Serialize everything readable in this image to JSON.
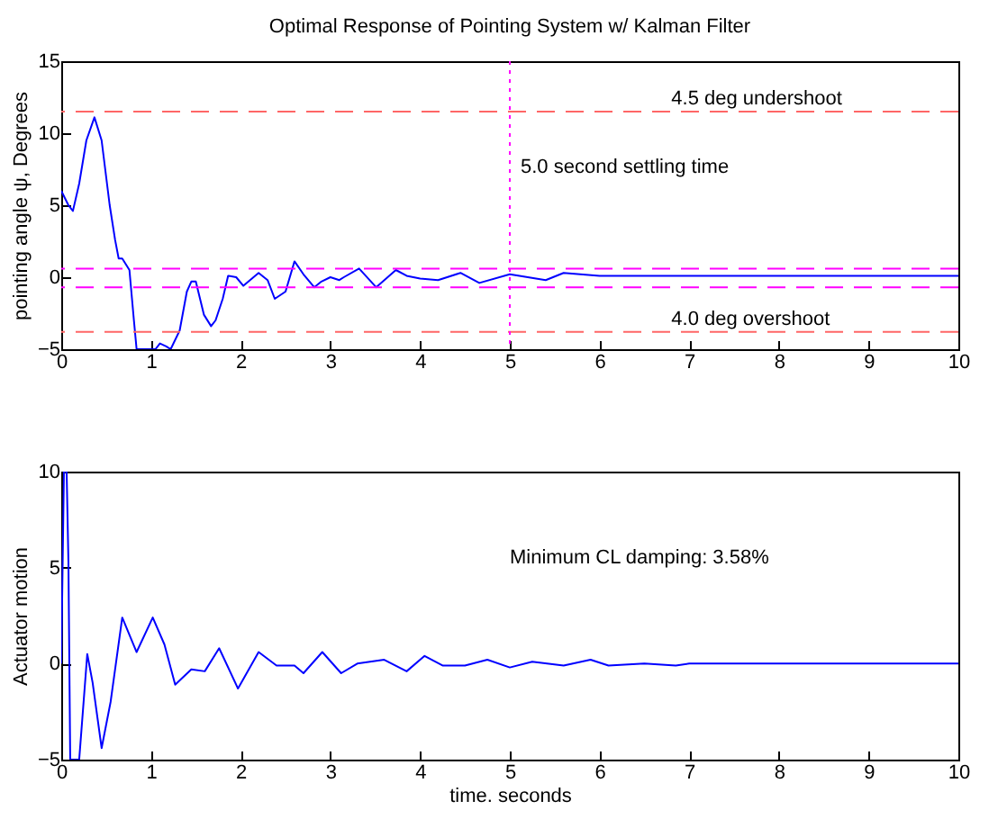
{
  "chart_data": [
    {
      "type": "line",
      "title": "Optimal Response of Pointing System w/ Kalman Filter",
      "ylabel": "pointing angle ψ, Degrees",
      "xlim": [
        0,
        10
      ],
      "xticks": [
        0,
        1,
        2,
        3,
        4,
        5,
        6,
        7,
        8,
        9,
        10
      ],
      "ylim": [
        -5,
        15
      ],
      "yticks": [
        -5,
        0,
        5,
        10,
        15
      ],
      "grid": false,
      "legend": false,
      "series": [
        {
          "color": "#0000ff",
          "line_style": "solid",
          "x": [
            0,
            0.08,
            0.13,
            0.2,
            0.28,
            0.37,
            0.45,
            0.54,
            0.6,
            0.64,
            0.68,
            0.76,
            0.81,
            0.84,
            1.05,
            1.1,
            1.17,
            1.22,
            1.32,
            1.4,
            1.45,
            1.5,
            1.59,
            1.67,
            1.72,
            1.8,
            1.86,
            1.95,
            2.03,
            2.2,
            2.3,
            2.38,
            2.5,
            2.6,
            2.7,
            2.82,
            2.9,
            3.0,
            3.1,
            3.15,
            3.32,
            3.51,
            3.73,
            3.85,
            4.0,
            4.2,
            4.45,
            4.66,
            5.0,
            5.4,
            5.6,
            6.0,
            6.5,
            7.0,
            8.0,
            9.0,
            10.0
          ],
          "values": [
            6.0,
            5.0,
            4.6,
            6.5,
            9.5,
            11.1,
            9.5,
            5.0,
            2.6,
            1.3,
            1.3,
            0.5,
            -3.0,
            -5,
            -5,
            -4.6,
            -4.8,
            -5,
            -3.7,
            -1.0,
            -0.3,
            -0.3,
            -2.6,
            -3.4,
            -3.0,
            -1.5,
            0.1,
            0.0,
            -0.6,
            0.3,
            -0.2,
            -1.5,
            -1.0,
            1.1,
            0.2,
            -0.7,
            -0.3,
            0.0,
            -0.2,
            0.0,
            0.6,
            -0.7,
            0.5,
            0.1,
            -0.1,
            -0.2,
            0.3,
            -0.4,
            0.2,
            -0.2,
            0.3,
            0.1,
            0.1,
            0.1,
            0.1,
            0.1,
            0.1
          ]
        }
      ],
      "ref_lines": [
        {
          "axis": "y",
          "value": 11.5,
          "label": "4.5 deg undershoot",
          "color": "#ff6666",
          "line_style": "dashed"
        },
        {
          "axis": "y",
          "value": 0.6,
          "color": "#ff00ff",
          "line_style": "dashed"
        },
        {
          "axis": "y",
          "value": -0.7,
          "color": "#ff00ff",
          "line_style": "dashed"
        },
        {
          "axis": "y",
          "value": -3.8,
          "label": "4.0 deg overshoot",
          "color": "#ff6666",
          "line_style": "dashed"
        },
        {
          "axis": "x",
          "value": 5,
          "label": "5.0 second settling time",
          "color": "#ff00ff",
          "line_style": "dotted"
        }
      ]
    },
    {
      "type": "line",
      "xlabel": "time. seconds",
      "ylabel": "Actuator motion",
      "xlim": [
        0,
        10
      ],
      "xticks": [
        0,
        1,
        2,
        3,
        4,
        5,
        6,
        7,
        8,
        9,
        10
      ],
      "ylim": [
        -5,
        10
      ],
      "yticks": [
        -5,
        0,
        5,
        10
      ],
      "grid": false,
      "legend": false,
      "annotations": [
        "Minimum CL damping: 3.58%"
      ],
      "series": [
        {
          "color": "#0000ff",
          "line_style": "solid",
          "x": [
            0,
            0.03,
            0.06,
            0.08,
            0.1,
            0.2,
            0.29,
            0.35,
            0.45,
            0.55,
            0.68,
            0.84,
            1.02,
            1.15,
            1.27,
            1.45,
            1.6,
            1.76,
            1.97,
            2.2,
            2.4,
            2.6,
            2.7,
            2.91,
            3.12,
            3.3,
            3.6,
            3.85,
            4.05,
            4.25,
            4.5,
            4.75,
            5.0,
            5.25,
            5.6,
            5.9,
            6.1,
            6.5,
            6.85,
            7.0,
            8.0,
            9.0,
            10.0
          ],
          "values": [
            0,
            10,
            10,
            5.3,
            -5,
            -5,
            0.5,
            -1.0,
            -4.4,
            -2.0,
            2.4,
            0.6,
            2.4,
            1.0,
            -1.1,
            -0.3,
            -0.4,
            0.8,
            -1.3,
            0.6,
            -0.1,
            -0.1,
            -0.5,
            0.6,
            -0.5,
            0.0,
            0.2,
            -0.4,
            0.4,
            -0.1,
            -0.1,
            0.2,
            -0.2,
            0.1,
            -0.1,
            0.2,
            -0.1,
            0.0,
            -0.1,
            0.0,
            0.0,
            0.0,
            0.0
          ]
        }
      ]
    }
  ]
}
